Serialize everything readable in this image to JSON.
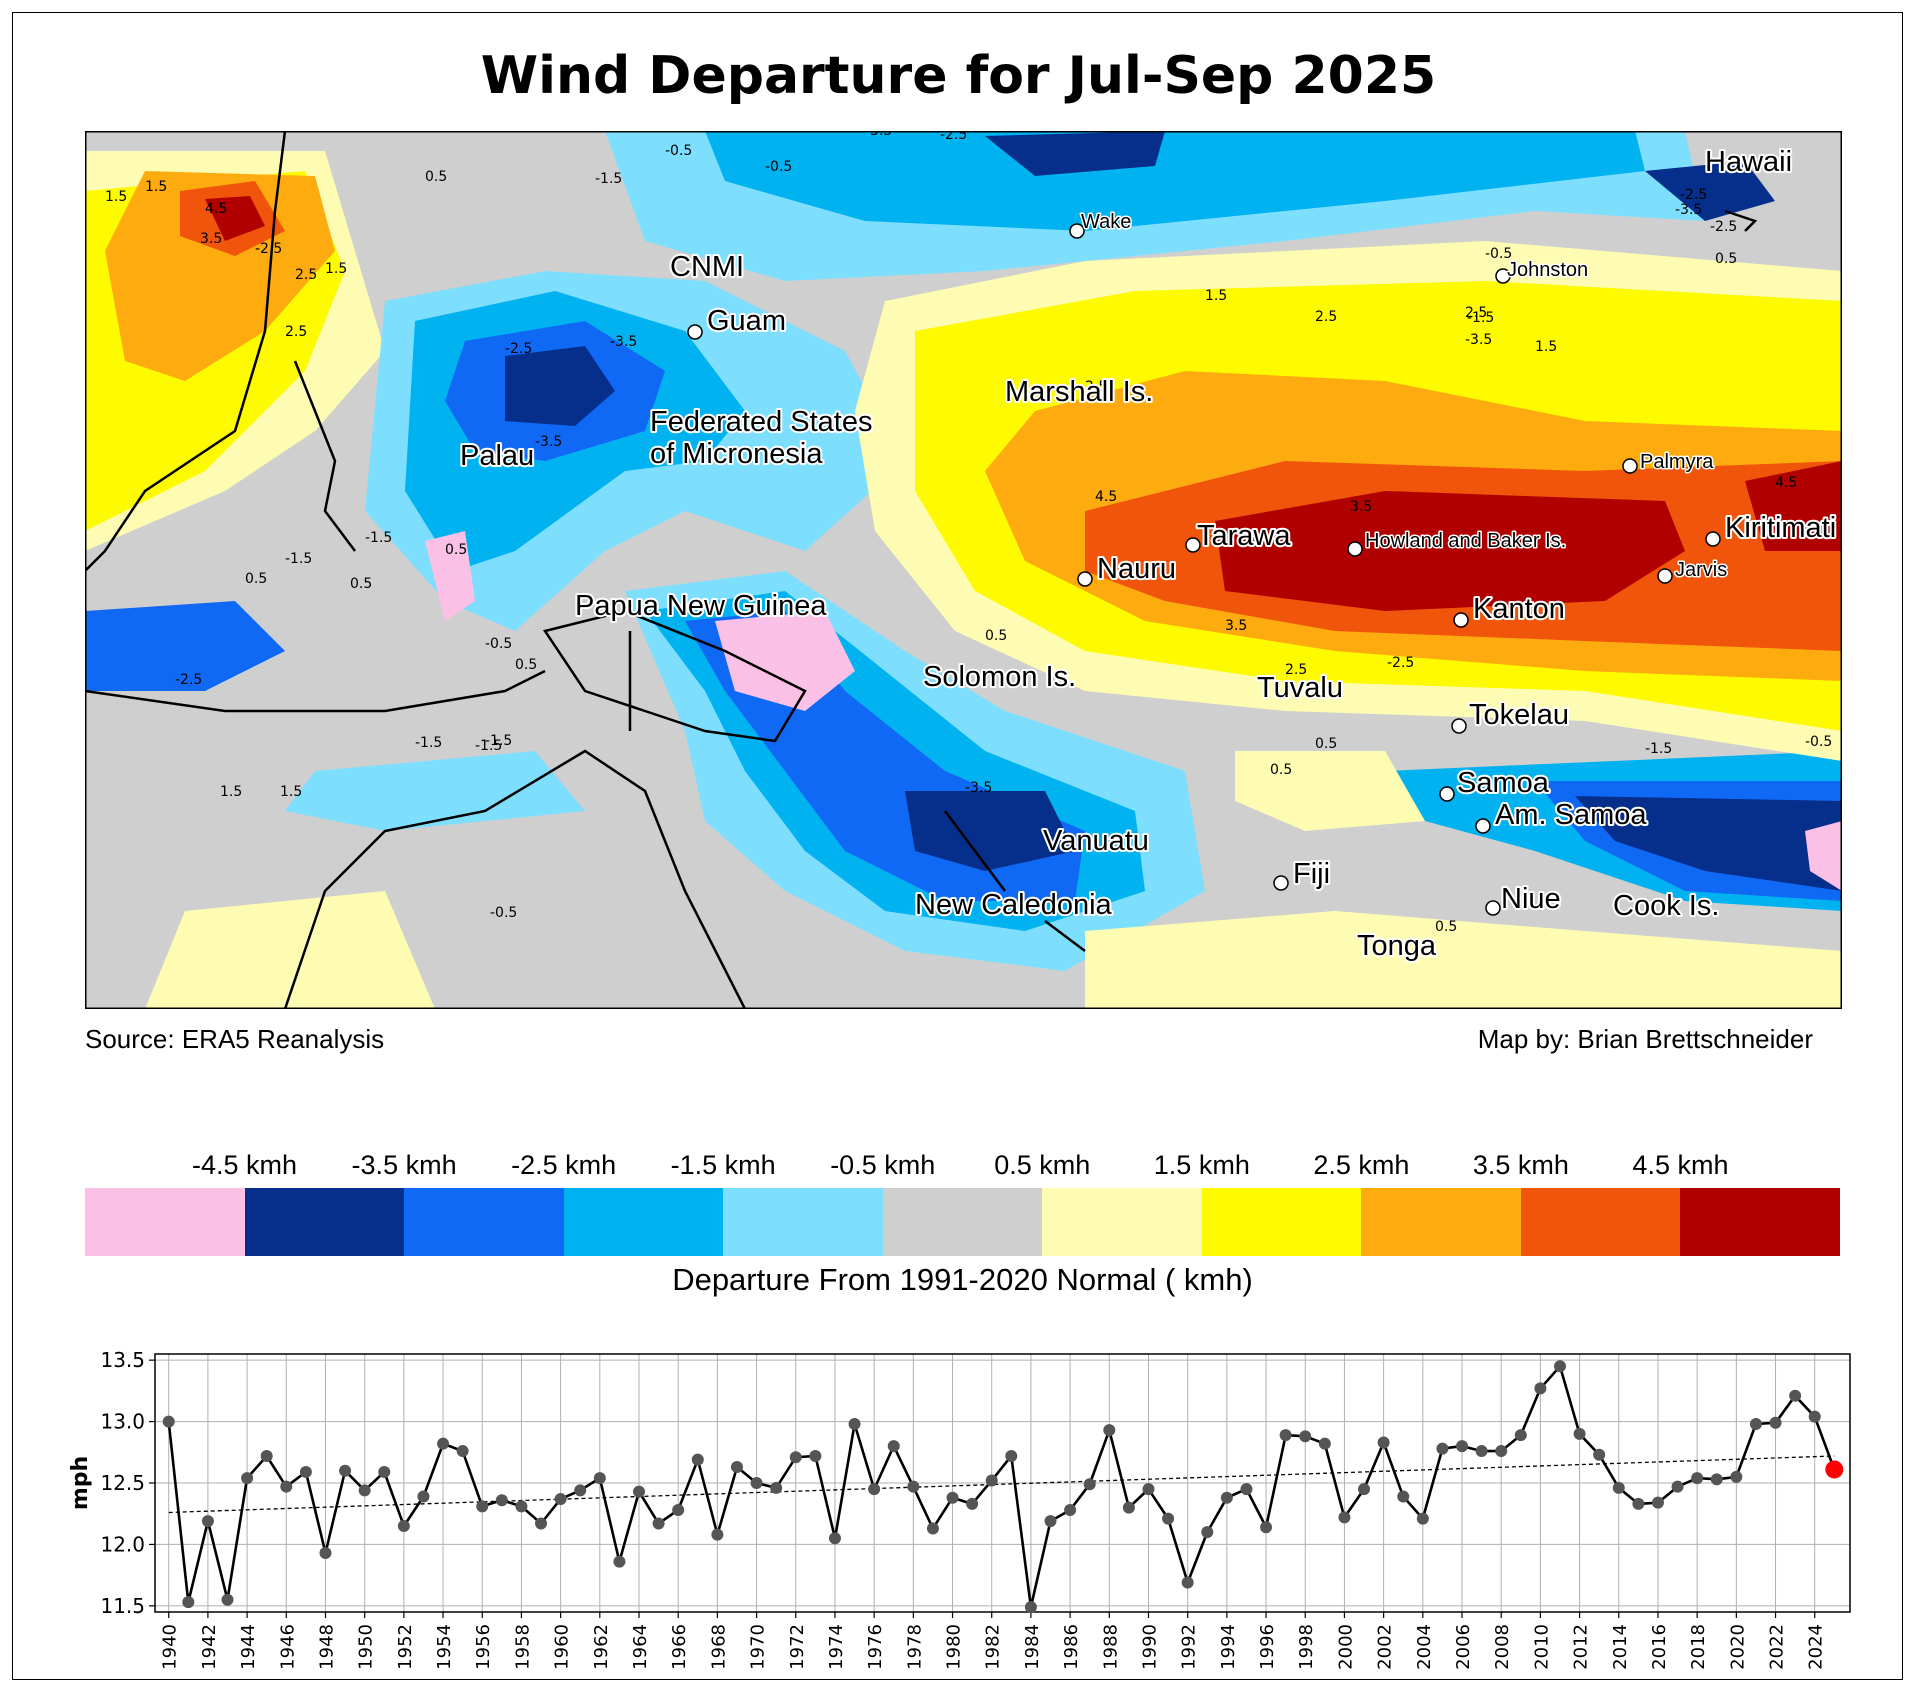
{
  "title": "Wind Departure for Jul-Sep 2025",
  "source": "Source: ERA5 Reanalysis",
  "credit": "Map by: Brian Brettschneider",
  "colorbar": {
    "title": "Departure From 1991-2020 Normal ( kmh)",
    "ticks": [
      "-4.5 kmh",
      "-3.5 kmh",
      "-2.5 kmh",
      "-1.5 kmh",
      "-0.5 kmh",
      "0.5 kmh",
      "1.5 kmh",
      "2.5 kmh",
      "3.5 kmh",
      "4.5 kmh"
    ],
    "colors": [
      "#fbc0e6",
      "#062f8c",
      "#1069f5",
      "#00b2f0",
      "#7ddffd",
      "#cfcfcf",
      "#fefcb2",
      "#fefa00",
      "#fdab0e",
      "#f0550b",
      "#b00000"
    ]
  },
  "map": {
    "labels": [
      {
        "text": "Hawaii",
        "size": "large"
      },
      {
        "text": "Wake",
        "size": "small"
      },
      {
        "text": "Johnston",
        "size": "small"
      },
      {
        "text": "CNMI",
        "size": "large"
      },
      {
        "text": "Guam",
        "size": "large"
      },
      {
        "text": "Marshall Is.",
        "size": "large"
      },
      {
        "text": "Federated States",
        "size": "large"
      },
      {
        "text": "of Micronesia",
        "size": "large"
      },
      {
        "text": "Palau",
        "size": "large"
      },
      {
        "text": "Palmyra",
        "size": "small"
      },
      {
        "text": "Tarawa",
        "size": "large"
      },
      {
        "text": "Howland and Baker Is.",
        "size": "small"
      },
      {
        "text": "Kiritimati",
        "size": "large"
      },
      {
        "text": "Nauru",
        "size": "large"
      },
      {
        "text": "Jarvis",
        "size": "small"
      },
      {
        "text": "Kanton",
        "size": "large"
      },
      {
        "text": "Papua New Guinea",
        "size": "large"
      },
      {
        "text": "Solomon Is.",
        "size": "large"
      },
      {
        "text": "Tuvalu",
        "size": "large"
      },
      {
        "text": "Tokelau",
        "size": "large"
      },
      {
        "text": "Samoa",
        "size": "large"
      },
      {
        "text": "Am. Samoa",
        "size": "large"
      },
      {
        "text": "Vanuatu",
        "size": "large"
      },
      {
        "text": "Fiji",
        "size": "large"
      },
      {
        "text": "Niue",
        "size": "large"
      },
      {
        "text": "Cook Is.",
        "size": "large"
      },
      {
        "text": "New Caledonia",
        "size": "large"
      },
      {
        "text": "Tonga",
        "size": "large"
      }
    ],
    "contour_labels": [
      "-2.5",
      "-3.5",
      "-2.5",
      "-0.5",
      "-1.5",
      "-0.5",
      "4.5",
      "3.5",
      "1.5",
      "1.5",
      "2.5",
      "1.5",
      "0.5",
      "2.5",
      "-2.5",
      "-3.5",
      "-3.5",
      "1.5",
      "2.5",
      "2.5",
      "1.5",
      "2.5",
      "4.5",
      "3.5",
      "3.5",
      "2.5",
      "-0.5",
      "-1.5",
      "-3.5",
      "0.5",
      "-2.5",
      "-1.5",
      "-1.5",
      "0.5",
      "0.5",
      "0.5",
      "-0.5",
      "0.5",
      "1.5",
      "1.5",
      "-0.5",
      "-1.5",
      "-3.5",
      "-1.5",
      "0.5",
      "0.5",
      "0.5",
      "4.5",
      "-2.5",
      "-3.5",
      "-2.5",
      "0.5",
      "-2.5",
      "-1.5",
      "-1.5",
      "-0.5"
    ]
  },
  "chart_data": {
    "type": "line",
    "title": "",
    "xlabel": "",
    "ylabel": "mph",
    "ylim": [
      11.45,
      13.55
    ],
    "xlim": [
      1939.3,
      2025.8
    ],
    "yticks": [
      "11.5",
      "12.0",
      "12.5",
      "13.0",
      "13.5"
    ],
    "xticks": [
      "1940",
      "1942",
      "1944",
      "1946",
      "1948",
      "1950",
      "1952",
      "1954",
      "1956",
      "1958",
      "1960",
      "1962",
      "1964",
      "1966",
      "1968",
      "1970",
      "1972",
      "1974",
      "1976",
      "1978",
      "1980",
      "1982",
      "1984",
      "1986",
      "1988",
      "1990",
      "1992",
      "1994",
      "1996",
      "1998",
      "2000",
      "2002",
      "2004",
      "2006",
      "2008",
      "2010",
      "2012",
      "2014",
      "2016",
      "2018",
      "2020",
      "2022",
      "2024"
    ],
    "grid": true,
    "x": [
      1940,
      1941,
      1942,
      1943,
      1944,
      1945,
      1946,
      1947,
      1948,
      1949,
      1950,
      1951,
      1952,
      1953,
      1954,
      1955,
      1956,
      1957,
      1958,
      1959,
      1960,
      1961,
      1962,
      1963,
      1964,
      1965,
      1966,
      1967,
      1968,
      1969,
      1970,
      1971,
      1972,
      1973,
      1974,
      1975,
      1976,
      1977,
      1978,
      1979,
      1980,
      1981,
      1982,
      1983,
      1984,
      1985,
      1986,
      1987,
      1988,
      1989,
      1990,
      1991,
      1992,
      1993,
      1994,
      1995,
      1996,
      1997,
      1998,
      1999,
      2000,
      2001,
      2002,
      2003,
      2004,
      2005,
      2006,
      2007,
      2008,
      2009,
      2010,
      2011,
      2012,
      2013,
      2014,
      2015,
      2016,
      2017,
      2018,
      2019,
      2020,
      2021,
      2022,
      2023,
      2024,
      2025
    ],
    "values": [
      13.0,
      11.53,
      12.19,
      11.55,
      12.54,
      12.72,
      12.47,
      12.59,
      11.93,
      12.6,
      12.44,
      12.59,
      12.15,
      12.39,
      12.82,
      12.76,
      12.31,
      12.36,
      12.31,
      12.17,
      12.37,
      12.44,
      12.54,
      11.86,
      12.43,
      12.17,
      12.28,
      12.69,
      12.08,
      12.63,
      12.5,
      12.46,
      12.71,
      12.72,
      12.05,
      12.98,
      12.45,
      12.8,
      12.47,
      12.13,
      12.38,
      12.33,
      12.52,
      12.72,
      11.49,
      12.19,
      12.28,
      12.49,
      12.93,
      12.3,
      12.45,
      12.21,
      11.69,
      12.1,
      12.38,
      12.45,
      12.14,
      12.89,
      12.88,
      12.82,
      12.22,
      12.45,
      12.83,
      12.39,
      12.21,
      12.78,
      12.8,
      12.76,
      12.76,
      12.89,
      13.27,
      13.45,
      12.9,
      12.73,
      12.46,
      12.33,
      12.34,
      12.47,
      12.54,
      12.53,
      12.55,
      12.98,
      12.99,
      13.21,
      13.04,
      12.61
    ],
    "trend": {
      "start": [
        1940,
        12.26
      ],
      "end": [
        2025,
        12.72
      ]
    },
    "highlight_last": true,
    "colors": {
      "line": "#000000",
      "marker": "#555555",
      "highlight": "#ff0000"
    }
  }
}
